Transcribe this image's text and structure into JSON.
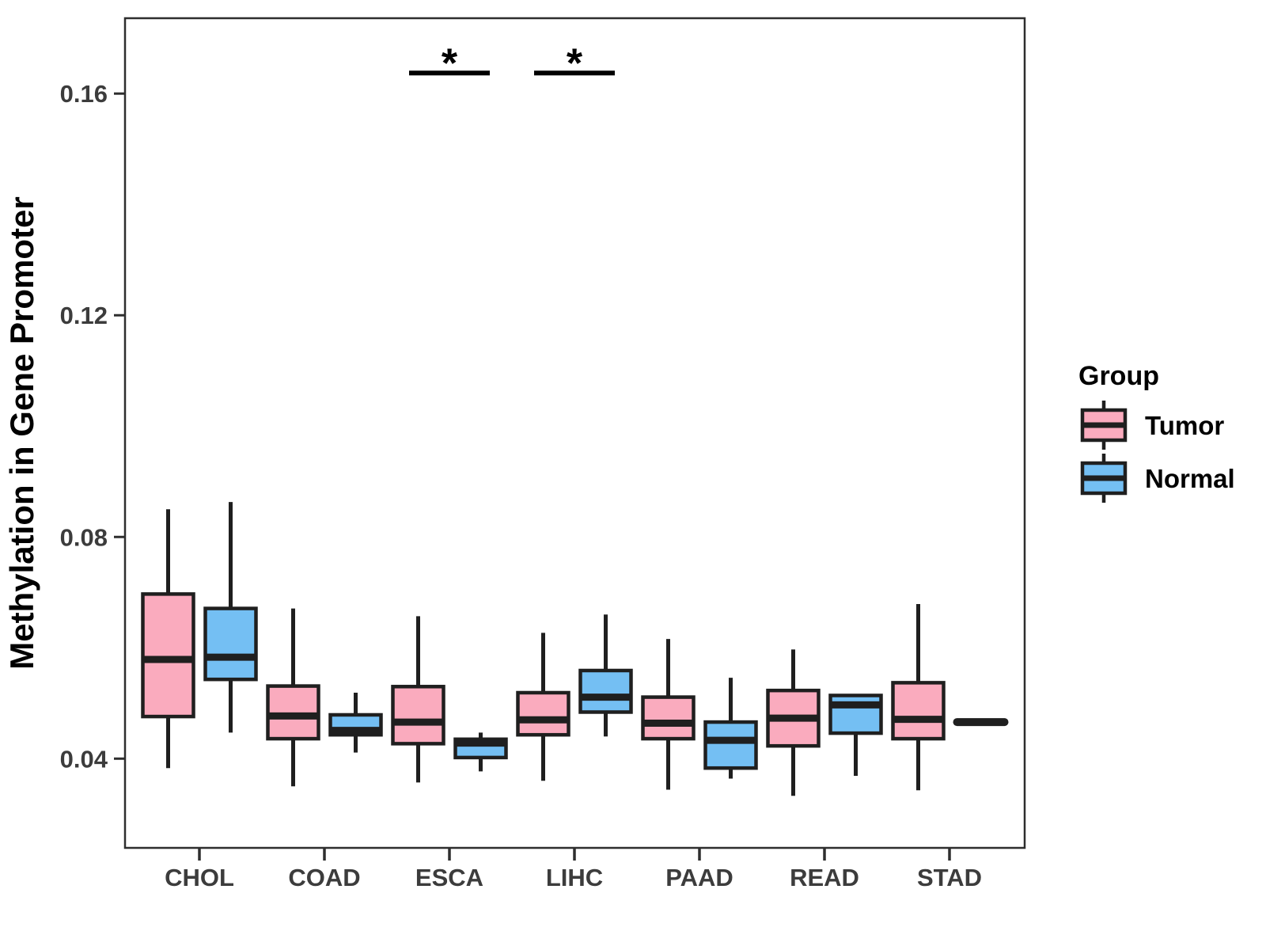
{
  "chart_data": {
    "type": "boxplot",
    "title": "",
    "xlabel": "",
    "ylabel": "Methylation in Gene Promoter",
    "grid": "off",
    "panel_border": true,
    "categories": [
      "CHOL",
      "COAD",
      "ESCA",
      "LIHC",
      "PAAD",
      "READ",
      "STAD"
    ],
    "y_ticks": [
      0.04,
      0.08,
      0.12,
      0.16
    ],
    "y_tick_labels": [
      "0.04",
      "0.08",
      "0.12",
      "0.16"
    ],
    "ylim": [
      0.0239,
      0.1736
    ],
    "box_stroke_color": "#1F1F1F",
    "series": [
      {
        "name": "Tumor",
        "color": "#FAABBE",
        "boxes": [
          {
            "category": "CHOL",
            "whisker_low": 0.0383,
            "q1": 0.0476,
            "median": 0.0579,
            "q3": 0.0697,
            "whisker_high": 0.085
          },
          {
            "category": "COAD",
            "whisker_low": 0.035,
            "q1": 0.0436,
            "median": 0.0477,
            "q3": 0.0531,
            "whisker_high": 0.0671
          },
          {
            "category": "ESCA",
            "whisker_low": 0.0357,
            "q1": 0.0427,
            "median": 0.0466,
            "q3": 0.053,
            "whisker_high": 0.0657
          },
          {
            "category": "LIHC",
            "whisker_low": 0.036,
            "q1": 0.0443,
            "median": 0.047,
            "q3": 0.0519,
            "whisker_high": 0.0627
          },
          {
            "category": "PAAD",
            "whisker_low": 0.0344,
            "q1": 0.0436,
            "median": 0.0464,
            "q3": 0.0511,
            "whisker_high": 0.0616
          },
          {
            "category": "READ",
            "whisker_low": 0.0333,
            "q1": 0.0423,
            "median": 0.0473,
            "q3": 0.0523,
            "whisker_high": 0.0597
          },
          {
            "category": "STAD",
            "whisker_low": 0.0343,
            "q1": 0.0436,
            "median": 0.0471,
            "q3": 0.0537,
            "whisker_high": 0.0679
          }
        ]
      },
      {
        "name": "Normal",
        "color": "#74BFF3",
        "boxes": [
          {
            "category": "CHOL",
            "whisker_low": 0.0447,
            "q1": 0.0543,
            "median": 0.0583,
            "q3": 0.0671,
            "whisker_high": 0.0863
          },
          {
            "category": "COAD",
            "whisker_low": 0.0411,
            "q1": 0.0443,
            "median": 0.0451,
            "q3": 0.0479,
            "whisker_high": 0.0519
          },
          {
            "category": "ESCA",
            "whisker_low": 0.0377,
            "q1": 0.0402,
            "median": 0.0428,
            "q3": 0.0435,
            "whisker_high": 0.0447
          },
          {
            "category": "LIHC",
            "whisker_low": 0.044,
            "q1": 0.0484,
            "median": 0.0511,
            "q3": 0.0559,
            "whisker_high": 0.066
          },
          {
            "category": "PAAD",
            "whisker_low": 0.0364,
            "q1": 0.0383,
            "median": 0.0433,
            "q3": 0.0466,
            "whisker_high": 0.0546
          },
          {
            "category": "READ",
            "whisker_low": 0.0369,
            "q1": 0.0446,
            "median": 0.0497,
            "q3": 0.0514,
            "whisker_high": 0.0514
          },
          {
            "category": "STAD",
            "whisker_low": 0.0466,
            "q1": 0.0466,
            "median": 0.0466,
            "q3": 0.0466,
            "whisker_high": 0.0466
          }
        ]
      }
    ],
    "annotations": [
      {
        "category": "ESCA",
        "symbol": "*",
        "bar_y": 0.1637
      },
      {
        "category": "LIHC",
        "symbol": "*",
        "bar_y": 0.1637
      }
    ],
    "legend": {
      "title": "Group",
      "position": "right",
      "entries": [
        "Tumor",
        "Normal"
      ]
    }
  }
}
